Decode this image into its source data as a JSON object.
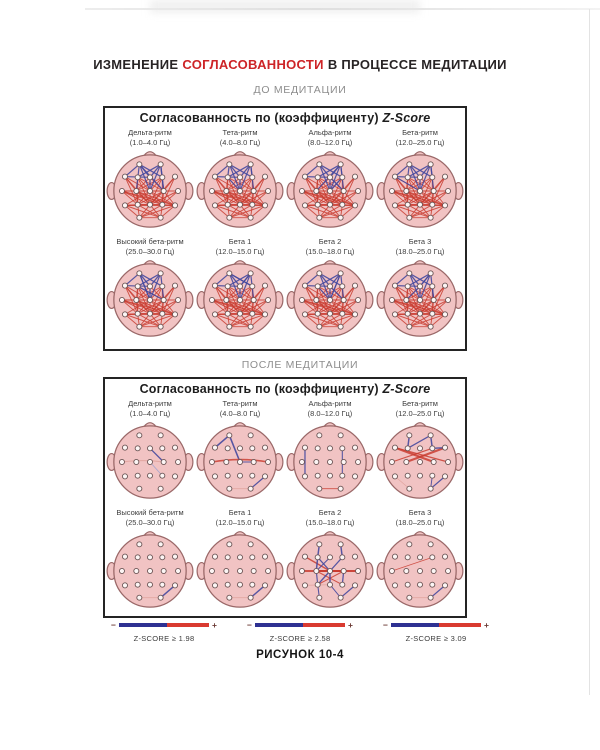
{
  "title": {
    "prefix": "ИЗМЕНЕНИЕ",
    "highlight": "СОГЛАСОВАННОСТИ",
    "suffix": "В ПРОЦЕССЕ МЕДИТАЦИИ"
  },
  "caption": "РИСУНОК 10-4",
  "colors": {
    "accent_red": "#cd2427",
    "section_gray": "#8d8d8d",
    "head_fill": "#f1c3c3",
    "head_stroke": "#9a6868",
    "electrode_fill": "#fcf6f5",
    "electrode_stroke": "#6b5555",
    "legend_blue": "#2e3192",
    "legend_red": "#d93a30",
    "edge": {
      "r": "#c93a2e",
      "b": "#464a9f",
      "p": "#dfa09a",
      "q": "#9aa0cf"
    }
  },
  "electrodes": [
    [
      -10.9,
      -27.3
    ],
    [
      10.9,
      -27.3
    ],
    [
      -25.6,
      -14.7
    ],
    [
      -12.6,
      -14.0
    ],
    [
      0,
      -14.0
    ],
    [
      12.6,
      -14.0
    ],
    [
      25.6,
      -14.7
    ],
    [
      -28.7,
      0
    ],
    [
      -14.0,
      0
    ],
    [
      0,
      0
    ],
    [
      14.0,
      0
    ],
    [
      28.7,
      0
    ],
    [
      -25.6,
      14.7
    ],
    [
      -12.6,
      14.0
    ],
    [
      0,
      14.0
    ],
    [
      12.6,
      14.0
    ],
    [
      25.6,
      14.7
    ],
    [
      -10.9,
      27.3
    ],
    [
      10.9,
      27.3
    ]
  ],
  "edge_presets": {
    "dense_red": [
      [
        2,
        8
      ],
      [
        2,
        9
      ],
      [
        2,
        13
      ],
      [
        2,
        14
      ],
      [
        3,
        8
      ],
      [
        3,
        9
      ],
      [
        3,
        10
      ],
      [
        3,
        13
      ],
      [
        3,
        14
      ],
      [
        4,
        8
      ],
      [
        4,
        9
      ],
      [
        4,
        10
      ],
      [
        5,
        8
      ],
      [
        5,
        9
      ],
      [
        5,
        10
      ],
      [
        5,
        14
      ],
      [
        5,
        15
      ],
      [
        6,
        10
      ],
      [
        6,
        14
      ],
      [
        6,
        15
      ],
      [
        7,
        8
      ],
      [
        7,
        9
      ],
      [
        7,
        13
      ],
      [
        7,
        14
      ],
      [
        7,
        15
      ],
      [
        7,
        16
      ],
      [
        8,
        9
      ],
      [
        8,
        10
      ],
      [
        8,
        13
      ],
      [
        8,
        14
      ],
      [
        8,
        15
      ],
      [
        8,
        16
      ],
      [
        9,
        10
      ],
      [
        9,
        12
      ],
      [
        9,
        13
      ],
      [
        9,
        14
      ],
      [
        9,
        15
      ],
      [
        9,
        16
      ],
      [
        10,
        11
      ],
      [
        10,
        13
      ],
      [
        10,
        14
      ],
      [
        10,
        15
      ],
      [
        10,
        16
      ],
      [
        11,
        14
      ],
      [
        11,
        15
      ],
      [
        12,
        13
      ],
      [
        12,
        14
      ],
      [
        12,
        15
      ],
      [
        12,
        16
      ],
      [
        12,
        17
      ],
      [
        12,
        18
      ],
      [
        13,
        14
      ],
      [
        13,
        15
      ],
      [
        13,
        16
      ],
      [
        13,
        17
      ],
      [
        13,
        18
      ],
      [
        14,
        15
      ],
      [
        14,
        17
      ],
      [
        14,
        18
      ],
      [
        15,
        16
      ],
      [
        15,
        17
      ],
      [
        15,
        18
      ],
      [
        16,
        17
      ],
      [
        16,
        18
      ],
      [
        17,
        18
      ]
    ],
    "dense_blue": [
      [
        0,
        4
      ],
      [
        0,
        5
      ],
      [
        0,
        9
      ],
      [
        1,
        3
      ],
      [
        1,
        4
      ],
      [
        1,
        9
      ],
      [
        1,
        10
      ],
      [
        2,
        4
      ],
      [
        4,
        9
      ],
      [
        0,
        2
      ]
    ]
  },
  "sections": [
    {
      "label": "ДО МЕДИТАЦИИ",
      "box_title": "Согласованность по (коэффициенту)",
      "box_title_em": "Z-Score",
      "heads": [
        {
          "name": "Дельта-ритм",
          "freq": "(1.0–4.0 Гц)",
          "preset": "dense",
          "extra": [
            [
              0,
              8,
              "b",
              1.2
            ],
            [
              1,
              10,
              "b",
              1.4
            ],
            [
              0,
              10,
              "b",
              1.3
            ]
          ]
        },
        {
          "name": "Тета-ритм",
          "freq": "(4.0–8.0 Гц)",
          "preset": "dense",
          "extra": [
            [
              0,
              3,
              "b",
              1.3
            ],
            [
              1,
              5,
              "b",
              1.3
            ],
            [
              3,
              9,
              "b",
              1.2
            ]
          ]
        },
        {
          "name": "Альфа-ритм",
          "freq": "(8.0–12.0 Гц)",
          "preset": "dense",
          "extra": [
            [
              5,
              9,
              "b",
              1.4
            ],
            [
              1,
              8,
              "b",
              1.2
            ],
            [
              4,
              10,
              "b",
              1.3
            ],
            [
              1,
              5,
              "b",
              1.2
            ]
          ]
        },
        {
          "name": "Бета-ритм",
          "freq": "(12.0–25.0 Гц)",
          "preset": "dense",
          "extra": [
            [
              0,
              3,
              "b",
              1.2
            ],
            [
              1,
              5,
              "b",
              1.3
            ],
            [
              2,
              9,
              "b",
              1.2
            ]
          ]
        },
        {
          "name": "Высокий бета-ритм",
          "freq": "(25.0–30.0 Гц)",
          "preset": "dense",
          "extra": [
            [
              0,
              9,
              "b",
              1.3
            ],
            [
              3,
              10,
              "b",
              1.2
            ]
          ]
        },
        {
          "name": "Бета 1",
          "freq": "(12.0–15.0 Гц)",
          "preset": "dense",
          "extra": [
            [
              1,
              4,
              "b",
              1.3
            ],
            [
              0,
              5,
              "b",
              1.2
            ]
          ]
        },
        {
          "name": "Бета 2",
          "freq": "(15.0–18.0 Гц)",
          "preset": "dense",
          "extra": [
            [
              4,
              10,
              "b",
              1.3
            ],
            [
              3,
              9,
              "b",
              1.2
            ],
            [
              1,
              9,
              "b",
              1.2
            ]
          ]
        },
        {
          "name": "Бета 3",
          "freq": "(18.0–25.0 Гц)",
          "preset": "dense",
          "extra": [
            [
              5,
              10,
              "b",
              1.3
            ],
            [
              1,
              4,
              "b",
              1.2
            ],
            [
              4,
              8,
              "b",
              1.2
            ]
          ]
        }
      ]
    },
    {
      "label": "ПОСЛЕ МЕДИТАЦИИ",
      "box_title": "Согласованность по (коэффициенту)",
      "box_title_em": "Z-Score",
      "heads": [
        {
          "name": "Дельта-ритм",
          "freq": "(1.0–4.0 Гц)",
          "edges": [
            [
              4,
              10,
              "b",
              1.3
            ],
            [
              7,
              10,
              "p",
              1.1,
              -3
            ],
            [
              9,
              15,
              "q",
              0.9
            ]
          ]
        },
        {
          "name": "Тета-ритм",
          "freq": "(4.0–8.0 Гц)",
          "edges": [
            [
              2,
              0,
              "b",
              1.6
            ],
            [
              0,
              9,
              "b",
              1.6
            ],
            [
              9,
              10,
              "b",
              1.0
            ],
            [
              7,
              11,
              "r",
              1.6,
              -5
            ],
            [
              16,
              18,
              "b",
              1.3
            ],
            [
              17,
              18,
              "p",
              0.9
            ]
          ]
        },
        {
          "name": "Альфа-ритм",
          "freq": "(8.0–12.0 Гц)",
          "edges": [
            [
              2,
              12,
              "b",
              1.3
            ],
            [
              5,
              15,
              "b",
              1.1
            ],
            [
              17,
              18,
              "r",
              1.0
            ]
          ]
        },
        {
          "name": "Бета-ритм",
          "freq": "(12.0–25.0 Гц)",
          "edges": [
            [
              2,
              10,
              "r",
              2.2
            ],
            [
              6,
              8,
              "r",
              2.2
            ],
            [
              7,
              5,
              "r",
              1.2
            ],
            [
              2,
              11,
              "r",
              1.3
            ],
            [
              12,
              17,
              "p",
              0.8
            ],
            [
              0,
              3,
              "b",
              1.5
            ],
            [
              3,
              1,
              "b",
              1.2
            ],
            [
              1,
              5,
              "b",
              1.5
            ],
            [
              5,
              6,
              "b",
              1.4
            ],
            [
              16,
              18,
              "b",
              1.3
            ],
            [
              15,
              18,
              "b",
              1.0
            ]
          ]
        },
        {
          "name": "Высокий бета-ритм",
          "freq": "(25.0–30.0 Гц)",
          "edges": [
            [
              16,
              18,
              "b",
              1.5
            ],
            [
              17,
              18,
              "p",
              1.0
            ]
          ]
        },
        {
          "name": "Бета 1",
          "freq": "(12.0–15.0 Гц)",
          "edges": [
            [
              16,
              18,
              "b",
              1.5
            ],
            [
              17,
              18,
              "p",
              1.0
            ]
          ]
        },
        {
          "name": "Бета 2",
          "freq": "(15.0–18.0 Гц)",
          "edges": [
            [
              7,
              10,
              "r",
              2.0
            ],
            [
              8,
              11,
              "r",
              2.0
            ],
            [
              2,
              9,
              "r",
              1.4
            ],
            [
              9,
              11,
              "r",
              1.4
            ],
            [
              8,
              15,
              "r",
              1.1
            ],
            [
              10,
              13,
              "r",
              1.1
            ],
            [
              12,
              14,
              "p",
              0.9
            ],
            [
              0,
              3,
              "b",
              1.5
            ],
            [
              3,
              8,
              "b",
              1.5
            ],
            [
              3,
              9,
              "b",
              1.3
            ],
            [
              1,
              5,
              "b",
              1.5
            ],
            [
              5,
              9,
              "b",
              1.3
            ],
            [
              4,
              8,
              "b",
              1.1
            ],
            [
              9,
              13,
              "b",
              1.4
            ],
            [
              9,
              14,
              "b",
              1.5
            ],
            [
              10,
              15,
              "b",
              1.3
            ],
            [
              8,
              13,
              "b",
              1.2
            ],
            [
              13,
              17,
              "b",
              1.1
            ],
            [
              16,
              18,
              "b",
              1.3
            ],
            [
              14,
              18,
              "b",
              1.0
            ]
          ]
        },
        {
          "name": "Бета 3",
          "freq": "(18.0–25.0 Гц)",
          "edges": [
            [
              7,
              5,
              "r",
              0.8
            ],
            [
              16,
              18,
              "b",
              1.3
            ],
            [
              17,
              18,
              "p",
              0.8
            ]
          ]
        }
      ]
    }
  ],
  "legend": {
    "minus": "−",
    "plus": "+",
    "items": [
      {
        "label": "Z-SCORE ≥ 1.98"
      },
      {
        "label": "Z-SCORE ≥ 2.58"
      },
      {
        "label": "Z-SCORE ≥ 3.09"
      }
    ]
  }
}
